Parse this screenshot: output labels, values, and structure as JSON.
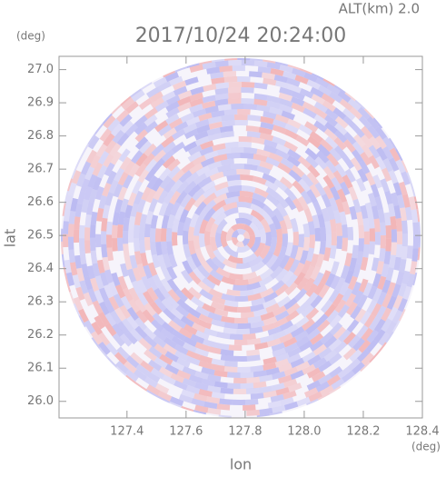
{
  "chart_data": {
    "type": "image",
    "title": "2017/10/24 20:24:00",
    "subtitle": "ALT(km) 2.0",
    "x_label": "lon",
    "y_label": "lat",
    "x_unit": "(deg)",
    "y_unit": "(deg)",
    "xlim": [
      127.17,
      128.4
    ],
    "ylim": [
      25.95,
      27.04
    ],
    "xticks": [
      127.4,
      127.6,
      127.8,
      {
        "value": 128.0,
        "label": "128.0"
      },
      128.2,
      128.4
    ],
    "yticks": [
      {
        "value": 26.0,
        "label": "26.0"
      },
      26.1,
      26.2,
      26.3,
      26.4,
      26.5,
      26.6,
      26.7,
      26.8,
      26.9,
      {
        "value": 27.0,
        "label": "27.0"
      }
    ]
  }
}
